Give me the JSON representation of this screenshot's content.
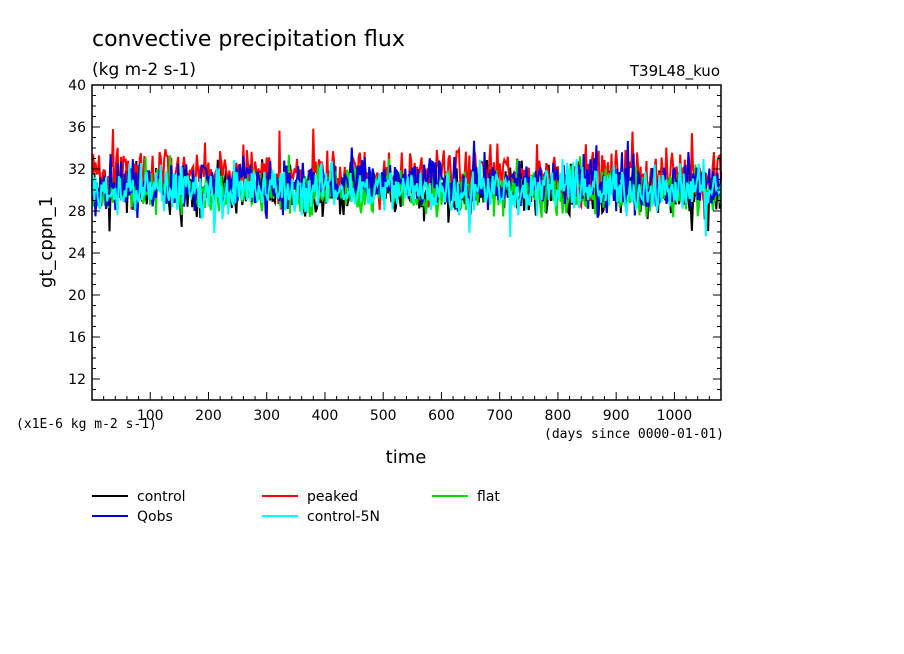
{
  "chart_data": {
    "type": "line",
    "title": "convective precipitation flux",
    "units": "(kg m-2 s-1)",
    "experiment": "T39L48_kuo",
    "ylabel": "gt_cppn_1",
    "xlabel": "time",
    "y_scale_note": "(x1E-6 kg m-2 s-1)",
    "x_units_note": "(days since 0000-01-01)",
    "xlim": [
      0,
      1080
    ],
    "ylim": [
      10,
      40
    ],
    "x_ticks": [
      100,
      200,
      300,
      400,
      500,
      600,
      700,
      800,
      900,
      1000
    ],
    "y_ticks": [
      12,
      16,
      20,
      24,
      28,
      32,
      36,
      40
    ],
    "legend_position": "below",
    "series": [
      {
        "name": "control",
        "color": "#000000",
        "mean": 29.9,
        "min": 25.9,
        "max": 33.0
      },
      {
        "name": "peaked",
        "color": "#ff0000",
        "mean": 31.4,
        "min": 28.0,
        "max": 35.9
      },
      {
        "name": "flat",
        "color": "#00dd00",
        "mean": 29.9,
        "min": 26.9,
        "max": 33.4
      },
      {
        "name": "Qobs",
        "color": "#0000dd",
        "mean": 30.6,
        "min": 27.2,
        "max": 34.8
      },
      {
        "name": "control-5N",
        "color": "#00ffff",
        "mean": 30.0,
        "min": 25.5,
        "max": 33.0
      }
    ]
  }
}
